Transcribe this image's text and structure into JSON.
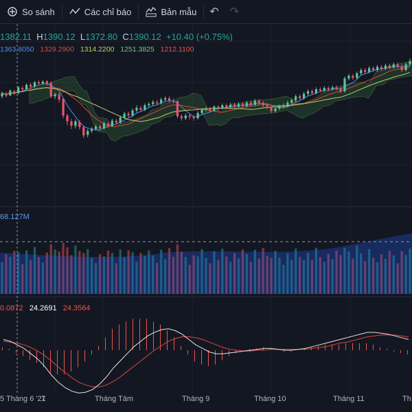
{
  "toolbar": {
    "compare_label": "So sánh",
    "indicators_label": "Các chỉ báo",
    "templates_label": "Bản mẫu"
  },
  "ohlc": {
    "open": "1382.11",
    "high_key": "H",
    "high": "1390.12",
    "low_key": "L",
    "low": "1372.80",
    "close_key": "C",
    "close": "1390.12",
    "change": "+10.40 (+0.75%)"
  },
  "ma_values": [
    {
      "value": "1363.8050",
      "color": "#4a8cf7"
    },
    {
      "value": "1329.2900",
      "color": "#e0453a"
    },
    {
      "value": "1314.2200",
      "color": "#b7d46a"
    },
    {
      "value": "1251.3825",
      "color": "#7bc96f"
    },
    {
      "value": "1212.1100",
      "color": "#ef5350"
    }
  ],
  "volume": {
    "value": "68.127M"
  },
  "macd": {
    "v1": "0.0872",
    "v2": "24.2691",
    "v3": "24.3564"
  },
  "x_axis": {
    "labels": [
      "5 Tháng 6 '21",
      "7",
      "Tháng Tám",
      "Tháng 9",
      "Tháng 10",
      "Tháng 11",
      "Th"
    ]
  },
  "colors": {
    "up": "#26a69a",
    "down": "#ef5350",
    "up_candle": "#5fc494",
    "down_candle": "#e8546a",
    "bg": "#131722"
  },
  "chart_data": {
    "type": "candlestick",
    "price_range": [
      1130,
      1430
    ],
    "candles": [
      {
        "o": 1290,
        "c": 1300,
        "h": 1305,
        "l": 1284
      },
      {
        "o": 1298,
        "c": 1292,
        "h": 1304,
        "l": 1286
      },
      {
        "o": 1293,
        "c": 1308,
        "h": 1312,
        "l": 1290
      },
      {
        "o": 1306,
        "c": 1300,
        "h": 1310,
        "l": 1294
      },
      {
        "o": 1300,
        "c": 1318,
        "h": 1322,
        "l": 1296
      },
      {
        "o": 1316,
        "c": 1312,
        "h": 1322,
        "l": 1306
      },
      {
        "o": 1312,
        "c": 1326,
        "h": 1330,
        "l": 1308
      },
      {
        "o": 1326,
        "c": 1320,
        "h": 1332,
        "l": 1314
      },
      {
        "o": 1320,
        "c": 1334,
        "h": 1338,
        "l": 1316
      },
      {
        "o": 1334,
        "c": 1330,
        "h": 1340,
        "l": 1326
      },
      {
        "o": 1330,
        "c": 1336,
        "h": 1340,
        "l": 1326
      },
      {
        "o": 1337,
        "c": 1330,
        "h": 1341,
        "l": 1324
      },
      {
        "o": 1332,
        "c": 1290,
        "h": 1336,
        "l": 1284
      },
      {
        "o": 1290,
        "c": 1296,
        "h": 1302,
        "l": 1282
      },
      {
        "o": 1296,
        "c": 1280,
        "h": 1300,
        "l": 1270
      },
      {
        "o": 1282,
        "c": 1230,
        "h": 1286,
        "l": 1222
      },
      {
        "o": 1230,
        "c": 1212,
        "h": 1236,
        "l": 1200
      },
      {
        "o": 1212,
        "c": 1198,
        "h": 1220,
        "l": 1188
      },
      {
        "o": 1198,
        "c": 1212,
        "h": 1218,
        "l": 1190
      },
      {
        "o": 1210,
        "c": 1194,
        "h": 1216,
        "l": 1186
      },
      {
        "o": 1194,
        "c": 1168,
        "h": 1198,
        "l": 1160
      },
      {
        "o": 1170,
        "c": 1182,
        "h": 1188,
        "l": 1162
      },
      {
        "o": 1182,
        "c": 1188,
        "h": 1194,
        "l": 1176
      },
      {
        "o": 1188,
        "c": 1196,
        "h": 1202,
        "l": 1182
      },
      {
        "o": 1196,
        "c": 1190,
        "h": 1202,
        "l": 1184
      },
      {
        "o": 1190,
        "c": 1206,
        "h": 1212,
        "l": 1186
      },
      {
        "o": 1205,
        "c": 1198,
        "h": 1210,
        "l": 1192
      },
      {
        "o": 1198,
        "c": 1214,
        "h": 1220,
        "l": 1194
      },
      {
        "o": 1214,
        "c": 1208,
        "h": 1220,
        "l": 1202
      },
      {
        "o": 1208,
        "c": 1224,
        "h": 1230,
        "l": 1204
      },
      {
        "o": 1224,
        "c": 1236,
        "h": 1242,
        "l": 1220
      },
      {
        "o": 1236,
        "c": 1230,
        "h": 1242,
        "l": 1224
      },
      {
        "o": 1230,
        "c": 1246,
        "h": 1252,
        "l": 1226
      },
      {
        "o": 1246,
        "c": 1254,
        "h": 1262,
        "l": 1240
      },
      {
        "o": 1254,
        "c": 1248,
        "h": 1260,
        "l": 1242
      },
      {
        "o": 1248,
        "c": 1262,
        "h": 1268,
        "l": 1244
      },
      {
        "o": 1262,
        "c": 1266,
        "h": 1272,
        "l": 1256
      },
      {
        "o": 1266,
        "c": 1272,
        "h": 1278,
        "l": 1260
      },
      {
        "o": 1272,
        "c": 1268,
        "h": 1278,
        "l": 1262
      },
      {
        "o": 1268,
        "c": 1280,
        "h": 1286,
        "l": 1264
      },
      {
        "o": 1280,
        "c": 1284,
        "h": 1290,
        "l": 1274
      },
      {
        "o": 1284,
        "c": 1276,
        "h": 1290,
        "l": 1270
      },
      {
        "o": 1276,
        "c": 1274,
        "h": 1284,
        "l": 1268
      },
      {
        "o": 1275,
        "c": 1228,
        "h": 1278,
        "l": 1222
      },
      {
        "o": 1228,
        "c": 1222,
        "h": 1234,
        "l": 1214
      },
      {
        "o": 1222,
        "c": 1230,
        "h": 1236,
        "l": 1216
      },
      {
        "o": 1230,
        "c": 1226,
        "h": 1236,
        "l": 1218
      },
      {
        "o": 1226,
        "c": 1222,
        "h": 1232,
        "l": 1214
      },
      {
        "o": 1222,
        "c": 1238,
        "h": 1244,
        "l": 1218
      },
      {
        "o": 1238,
        "c": 1248,
        "h": 1254,
        "l": 1234
      },
      {
        "o": 1248,
        "c": 1252,
        "h": 1258,
        "l": 1242
      },
      {
        "o": 1252,
        "c": 1246,
        "h": 1258,
        "l": 1240
      },
      {
        "o": 1246,
        "c": 1258,
        "h": 1262,
        "l": 1242
      },
      {
        "o": 1258,
        "c": 1252,
        "h": 1262,
        "l": 1246
      },
      {
        "o": 1252,
        "c": 1262,
        "h": 1268,
        "l": 1248
      },
      {
        "o": 1262,
        "c": 1256,
        "h": 1268,
        "l": 1250
      },
      {
        "o": 1256,
        "c": 1264,
        "h": 1270,
        "l": 1250
      },
      {
        "o": 1264,
        "c": 1258,
        "h": 1270,
        "l": 1252
      },
      {
        "o": 1258,
        "c": 1266,
        "h": 1272,
        "l": 1254
      },
      {
        "o": 1266,
        "c": 1260,
        "h": 1272,
        "l": 1254
      },
      {
        "o": 1260,
        "c": 1270,
        "h": 1276,
        "l": 1256
      },
      {
        "o": 1270,
        "c": 1264,
        "h": 1276,
        "l": 1258
      },
      {
        "o": 1264,
        "c": 1276,
        "h": 1282,
        "l": 1260
      },
      {
        "o": 1276,
        "c": 1270,
        "h": 1282,
        "l": 1262
      },
      {
        "o": 1270,
        "c": 1262,
        "h": 1276,
        "l": 1256
      },
      {
        "o": 1262,
        "c": 1258,
        "h": 1268,
        "l": 1250
      },
      {
        "o": 1258,
        "c": 1244,
        "h": 1264,
        "l": 1238
      },
      {
        "o": 1244,
        "c": 1252,
        "h": 1258,
        "l": 1240
      },
      {
        "o": 1252,
        "c": 1258,
        "h": 1264,
        "l": 1246
      },
      {
        "o": 1258,
        "c": 1262,
        "h": 1268,
        "l": 1252
      },
      {
        "o": 1262,
        "c": 1270,
        "h": 1276,
        "l": 1256
      },
      {
        "o": 1270,
        "c": 1278,
        "h": 1284,
        "l": 1264
      },
      {
        "o": 1278,
        "c": 1290,
        "h": 1296,
        "l": 1272
      },
      {
        "o": 1290,
        "c": 1284,
        "h": 1296,
        "l": 1278
      },
      {
        "o": 1284,
        "c": 1298,
        "h": 1304,
        "l": 1280
      },
      {
        "o": 1298,
        "c": 1306,
        "h": 1312,
        "l": 1292
      },
      {
        "o": 1306,
        "c": 1300,
        "h": 1312,
        "l": 1294
      },
      {
        "o": 1300,
        "c": 1312,
        "h": 1318,
        "l": 1296
      },
      {
        "o": 1312,
        "c": 1308,
        "h": 1318,
        "l": 1302
      },
      {
        "o": 1308,
        "c": 1316,
        "h": 1322,
        "l": 1304
      },
      {
        "o": 1316,
        "c": 1312,
        "h": 1322,
        "l": 1306
      },
      {
        "o": 1312,
        "c": 1318,
        "h": 1324,
        "l": 1308
      },
      {
        "o": 1318,
        "c": 1314,
        "h": 1324,
        "l": 1308
      },
      {
        "o": 1314,
        "c": 1306,
        "h": 1320,
        "l": 1300
      },
      {
        "o": 1306,
        "c": 1346,
        "h": 1352,
        "l": 1302
      },
      {
        "o": 1346,
        "c": 1354,
        "h": 1360,
        "l": 1340
      },
      {
        "o": 1354,
        "c": 1348,
        "h": 1360,
        "l": 1342
      },
      {
        "o": 1348,
        "c": 1362,
        "h": 1368,
        "l": 1344
      },
      {
        "o": 1362,
        "c": 1372,
        "h": 1378,
        "l": 1356
      },
      {
        "o": 1372,
        "c": 1366,
        "h": 1378,
        "l": 1360
      },
      {
        "o": 1366,
        "c": 1378,
        "h": 1384,
        "l": 1362
      },
      {
        "o": 1378,
        "c": 1372,
        "h": 1384,
        "l": 1366
      },
      {
        "o": 1372,
        "c": 1382,
        "h": 1388,
        "l": 1366
      },
      {
        "o": 1382,
        "c": 1376,
        "h": 1388,
        "l": 1370
      },
      {
        "o": 1376,
        "c": 1386,
        "h": 1392,
        "l": 1372
      },
      {
        "o": 1386,
        "c": 1380,
        "h": 1392,
        "l": 1374
      },
      {
        "o": 1380,
        "c": 1390,
        "h": 1396,
        "l": 1376
      },
      {
        "o": 1390,
        "c": 1384,
        "h": 1396,
        "l": 1378
      },
      {
        "o": 1384,
        "c": 1372,
        "h": 1390,
        "l": 1366
      },
      {
        "o": 1372,
        "c": 1390,
        "h": 1396,
        "l": 1368
      },
      {
        "o": 1390,
        "c": 1400,
        "h": 1408,
        "l": 1384
      }
    ],
    "macd_line": [
      12,
      10,
      6,
      2,
      -4,
      -10,
      -18,
      -28,
      -36,
      -42,
      -46,
      -48,
      -47,
      -44,
      -38,
      -30,
      -20,
      -12,
      -4,
      4,
      10,
      16,
      20,
      23,
      24,
      22,
      18,
      12,
      6,
      2,
      -2,
      -4,
      -4,
      -3,
      -2,
      -1,
      0,
      1,
      2,
      2,
      1,
      0,
      0,
      1,
      2,
      4,
      6,
      8,
      10,
      12,
      14,
      16,
      18,
      20,
      20,
      19,
      18,
      16,
      14,
      12
    ],
    "signal_line": [
      10,
      9,
      8,
      6,
      3,
      -1,
      -6,
      -12,
      -19,
      -25,
      -31,
      -36,
      -39,
      -41,
      -41,
      -39,
      -35,
      -30,
      -24,
      -18,
      -12,
      -6,
      0,
      5,
      10,
      13,
      15,
      15,
      14,
      12,
      9,
      6,
      3,
      1,
      0,
      -1,
      -1,
      0,
      0,
      1,
      1,
      1,
      1,
      1,
      1,
      2,
      3,
      4,
      6,
      8,
      9,
      11,
      13,
      15,
      16,
      17,
      17,
      17,
      16,
      15
    ]
  }
}
